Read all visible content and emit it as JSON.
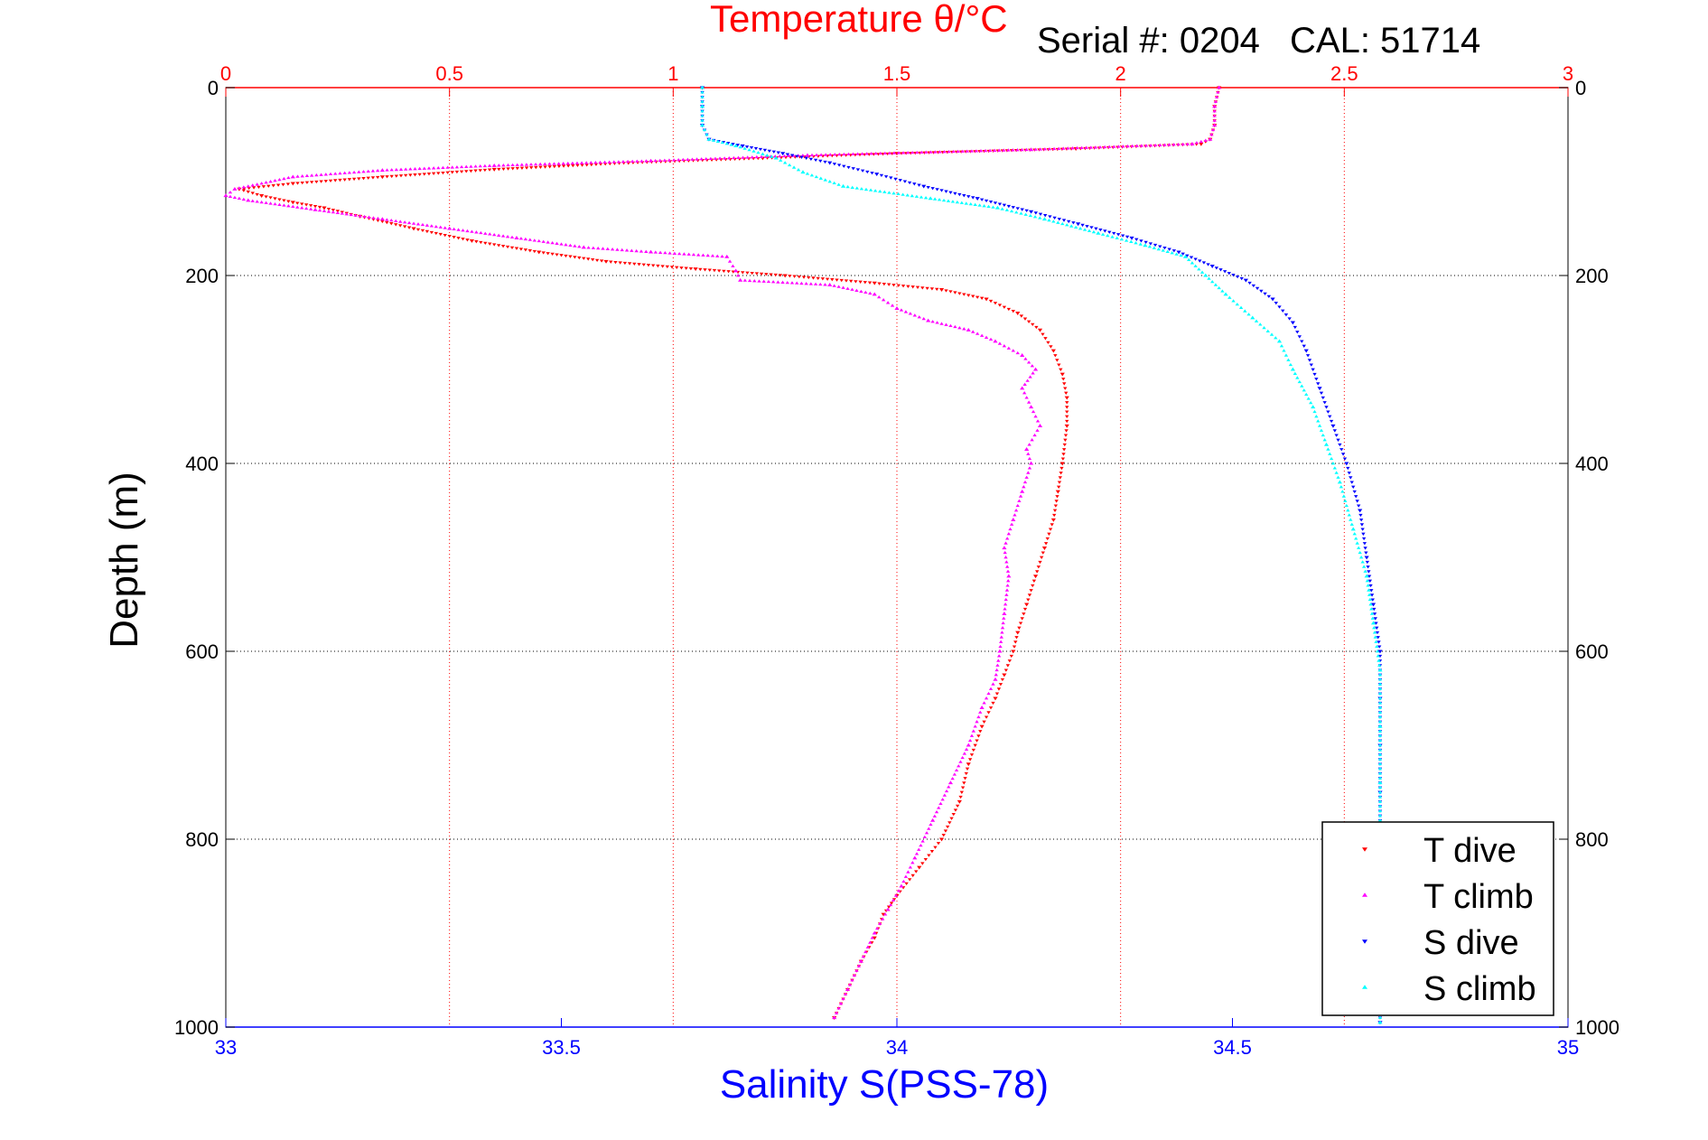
{
  "chart_data": {
    "type": "scatter",
    "title_top": "Temperature θ/°C",
    "serial": "Serial #: 0204",
    "cal": "CAL: 51714",
    "xlabel_bottom": "Salinity S(PSS-78)",
    "ylabel": "Depth (m)",
    "x_top": {
      "label": "Temperature θ/°C",
      "lim": [
        0,
        3
      ],
      "ticks": [
        0,
        0.5,
        1,
        1.5,
        2,
        2.5,
        3
      ],
      "tick_labels": [
        "0",
        "0.5",
        "1",
        "1.5",
        "2",
        "2.5",
        "3"
      ],
      "color": "#ff0000"
    },
    "x_bottom": {
      "label": "Salinity S(PSS-78)",
      "lim": [
        33,
        35
      ],
      "ticks": [
        33,
        33.5,
        34,
        34.5,
        35
      ],
      "tick_labels": [
        "33",
        "33.5",
        "34",
        "34.5",
        "35"
      ],
      "color": "#0000ff"
    },
    "y": {
      "label": "Depth (m)",
      "lim": [
        0,
        1000
      ],
      "reversed": true,
      "ticks": [
        0,
        200,
        400,
        600,
        800,
        1000
      ],
      "tick_labels": [
        "0",
        "200",
        "400",
        "600",
        "800",
        "1000"
      ]
    },
    "grid": true,
    "legend_position": "bottom-right",
    "series": [
      {
        "name": "T dive",
        "axis": "top",
        "marker": "down-triangle",
        "color": "#ff0000",
        "points": [
          [
            2.22,
            0
          ],
          [
            2.21,
            20
          ],
          [
            2.21,
            40
          ],
          [
            2.2,
            55
          ],
          [
            2.18,
            60
          ],
          [
            1.9,
            65
          ],
          [
            1.5,
            70
          ],
          [
            1.2,
            75
          ],
          [
            0.9,
            80
          ],
          [
            0.6,
            87
          ],
          [
            0.35,
            95
          ],
          [
            0.15,
            102
          ],
          [
            0.03,
            108
          ],
          [
            0.08,
            115
          ],
          [
            0.15,
            122
          ],
          [
            0.22,
            128
          ],
          [
            0.3,
            137
          ],
          [
            0.42,
            150
          ],
          [
            0.55,
            163
          ],
          [
            0.7,
            175
          ],
          [
            0.85,
            185
          ],
          [
            1.05,
            193
          ],
          [
            1.25,
            200
          ],
          [
            1.45,
            208
          ],
          [
            1.6,
            215
          ],
          [
            1.7,
            225
          ],
          [
            1.77,
            240
          ],
          [
            1.82,
            258
          ],
          [
            1.85,
            280
          ],
          [
            1.87,
            305
          ],
          [
            1.88,
            330
          ],
          [
            1.88,
            360
          ],
          [
            1.87,
            400
          ],
          [
            1.86,
            430
          ],
          [
            1.85,
            460
          ],
          [
            1.83,
            490
          ],
          [
            1.81,
            520
          ],
          [
            1.79,
            550
          ],
          [
            1.77,
            580
          ],
          [
            1.76,
            600
          ],
          [
            1.74,
            625
          ],
          [
            1.72,
            650
          ],
          [
            1.69,
            680
          ],
          [
            1.66,
            720
          ],
          [
            1.64,
            760
          ],
          [
            1.6,
            800
          ],
          [
            1.55,
            830
          ],
          [
            1.5,
            860
          ],
          [
            1.47,
            880
          ],
          [
            1.45,
            905
          ],
          [
            1.42,
            930
          ],
          [
            1.39,
            960
          ],
          [
            1.36,
            990
          ]
        ]
      },
      {
        "name": "T climb",
        "axis": "top",
        "marker": "up-triangle",
        "color": "#ff00ff",
        "points": [
          [
            2.22,
            0
          ],
          [
            2.21,
            20
          ],
          [
            2.21,
            40
          ],
          [
            2.2,
            55
          ],
          [
            2.16,
            60
          ],
          [
            1.8,
            66
          ],
          [
            1.3,
            72
          ],
          [
            0.95,
            78
          ],
          [
            0.6,
            83
          ],
          [
            0.35,
            88
          ],
          [
            0.15,
            95
          ],
          [
            0.02,
            108
          ],
          [
            0.0,
            115
          ],
          [
            0.05,
            120
          ],
          [
            0.2,
            130
          ],
          [
            0.35,
            140
          ],
          [
            0.5,
            150
          ],
          [
            0.65,
            160
          ],
          [
            0.8,
            170
          ],
          [
            0.95,
            175
          ],
          [
            1.12,
            180
          ],
          [
            1.14,
            195
          ],
          [
            1.15,
            205
          ],
          [
            1.35,
            210
          ],
          [
            1.45,
            220
          ],
          [
            1.5,
            235
          ],
          [
            1.57,
            248
          ],
          [
            1.66,
            258
          ],
          [
            1.72,
            270
          ],
          [
            1.78,
            285
          ],
          [
            1.81,
            300
          ],
          [
            1.78,
            320
          ],
          [
            1.8,
            340
          ],
          [
            1.82,
            360
          ],
          [
            1.79,
            385
          ],
          [
            1.8,
            400
          ],
          [
            1.78,
            430
          ],
          [
            1.76,
            460
          ],
          [
            1.74,
            490
          ],
          [
            1.75,
            520
          ],
          [
            1.74,
            560
          ],
          [
            1.73,
            600
          ],
          [
            1.72,
            630
          ],
          [
            1.69,
            660
          ],
          [
            1.66,
            700
          ],
          [
            1.62,
            740
          ],
          [
            1.58,
            780
          ],
          [
            1.54,
            820
          ],
          [
            1.51,
            850
          ],
          [
            1.48,
            875
          ],
          [
            1.45,
            900
          ],
          [
            1.42,
            930
          ],
          [
            1.39,
            960
          ],
          [
            1.36,
            990
          ]
        ]
      },
      {
        "name": "S dive",
        "axis": "bottom",
        "marker": "down-triangle",
        "color": "#0000ff",
        "points": [
          [
            33.71,
            0
          ],
          [
            33.71,
            20
          ],
          [
            33.71,
            40
          ],
          [
            33.72,
            55
          ],
          [
            33.77,
            62
          ],
          [
            33.83,
            70
          ],
          [
            33.9,
            80
          ],
          [
            33.97,
            92
          ],
          [
            34.04,
            105
          ],
          [
            34.12,
            118
          ],
          [
            34.2,
            132
          ],
          [
            34.27,
            145
          ],
          [
            34.35,
            160
          ],
          [
            34.42,
            175
          ],
          [
            34.47,
            190
          ],
          [
            34.52,
            205
          ],
          [
            34.56,
            225
          ],
          [
            34.59,
            250
          ],
          [
            34.61,
            280
          ],
          [
            34.63,
            320
          ],
          [
            34.65,
            360
          ],
          [
            34.67,
            400
          ],
          [
            34.69,
            450
          ],
          [
            34.7,
            500
          ],
          [
            34.71,
            550
          ],
          [
            34.72,
            600
          ],
          [
            34.72,
            650
          ],
          [
            34.72,
            700
          ],
          [
            34.72,
            750
          ],
          [
            34.72,
            800
          ],
          [
            34.72,
            850
          ],
          [
            34.72,
            900
          ],
          [
            34.72,
            950
          ],
          [
            34.72,
            995
          ]
        ]
      },
      {
        "name": "S climb",
        "axis": "bottom",
        "marker": "up-triangle",
        "color": "#00ffff",
        "points": [
          [
            33.71,
            0
          ],
          [
            33.71,
            20
          ],
          [
            33.71,
            40
          ],
          [
            33.72,
            55
          ],
          [
            33.76,
            62
          ],
          [
            33.82,
            75
          ],
          [
            33.86,
            90
          ],
          [
            33.92,
            105
          ],
          [
            34.05,
            118
          ],
          [
            34.15,
            128
          ],
          [
            34.22,
            140
          ],
          [
            34.3,
            155
          ],
          [
            34.37,
            168
          ],
          [
            34.43,
            180
          ],
          [
            34.46,
            200
          ],
          [
            34.49,
            220
          ],
          [
            34.53,
            245
          ],
          [
            34.57,
            270
          ],
          [
            34.59,
            300
          ],
          [
            34.62,
            340
          ],
          [
            34.64,
            380
          ],
          [
            34.66,
            420
          ],
          [
            34.68,
            470
          ],
          [
            34.7,
            520
          ],
          [
            34.71,
            570
          ],
          [
            34.72,
            620
          ],
          [
            34.72,
            680
          ],
          [
            34.72,
            740
          ],
          [
            34.72,
            800
          ],
          [
            34.72,
            860
          ],
          [
            34.72,
            920
          ],
          [
            34.72,
            995
          ]
        ]
      }
    ]
  }
}
